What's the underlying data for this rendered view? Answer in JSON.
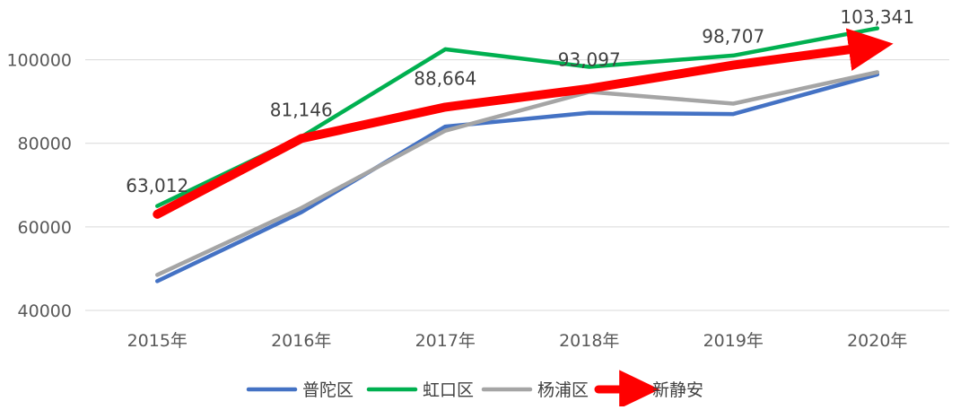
{
  "chart_data": {
    "type": "line",
    "categories": [
      "2015年",
      "2016年",
      "2017年",
      "2018年",
      "2019年",
      "2020年"
    ],
    "ylim": [
      40000,
      110000
    ],
    "yticks": [
      40000,
      60000,
      80000,
      100000
    ],
    "grid": true,
    "legend_position": "bottom",
    "series": [
      {
        "name": "普陀区",
        "color": "#4472C4",
        "values": [
          47000,
          63500,
          84000,
          87300,
          87000,
          96500
        ]
      },
      {
        "name": "虹口区",
        "color": "#00B050",
        "values": [
          65000,
          81500,
          102500,
          98300,
          101000,
          107500
        ]
      },
      {
        "name": "杨浦区",
        "color": "#A5A5A5",
        "values": [
          48500,
          64500,
          83000,
          92300,
          89500,
          97000
        ]
      },
      {
        "name": "新静安",
        "color": "#FF0000",
        "values": [
          63012,
          81146,
          88664,
          93097,
          98707,
          103341
        ],
        "data_labels": [
          "63,012",
          "81,146",
          "88,664",
          "93,097",
          "98,707",
          "103,341"
        ]
      }
    ]
  }
}
